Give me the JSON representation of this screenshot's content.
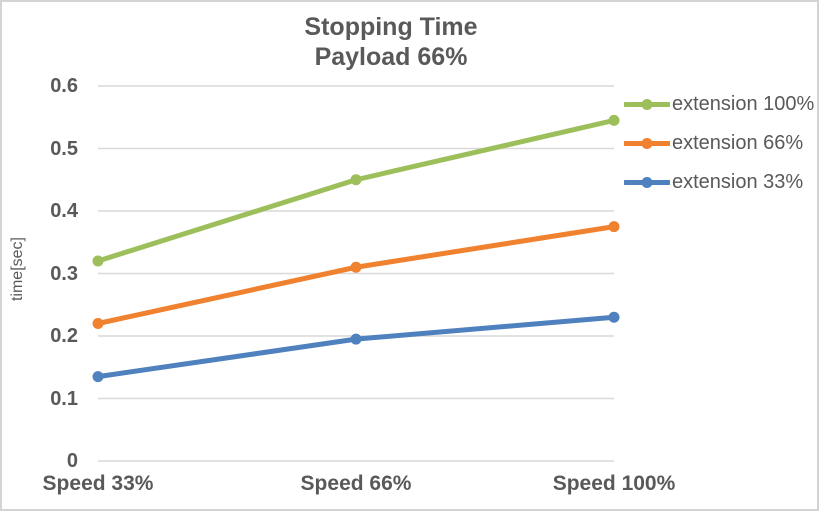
{
  "title": {
    "line1": "Stopping Time",
    "line2": "Payload 66%"
  },
  "chart_data": {
    "type": "line",
    "categories": [
      "Speed 33%",
      "Speed 66%",
      "Speed 100%"
    ],
    "series": [
      {
        "name": "extension 100%",
        "color": "#9DBF5B",
        "values": [
          0.32,
          0.45,
          0.545
        ]
      },
      {
        "name": "extension 66%",
        "color": "#F0812E",
        "values": [
          0.22,
          0.31,
          0.375
        ]
      },
      {
        "name": "extension 33%",
        "color": "#4E81BD",
        "values": [
          0.135,
          0.195,
          0.23
        ]
      }
    ],
    "xlabel": "",
    "ylabel": "time[sec]",
    "ylim": [
      0,
      0.6
    ],
    "ytick_labels": [
      "0",
      "0.1",
      "0.2",
      "0.3",
      "0.4",
      "0.5",
      "0.6"
    ],
    "grid": "horizontal",
    "legend_position": "right",
    "marker": "circle"
  },
  "colors": {
    "text": "#595959",
    "gridline": "#D9D9D9",
    "border": "#D4D4D4",
    "background": "#FFFFFF"
  }
}
